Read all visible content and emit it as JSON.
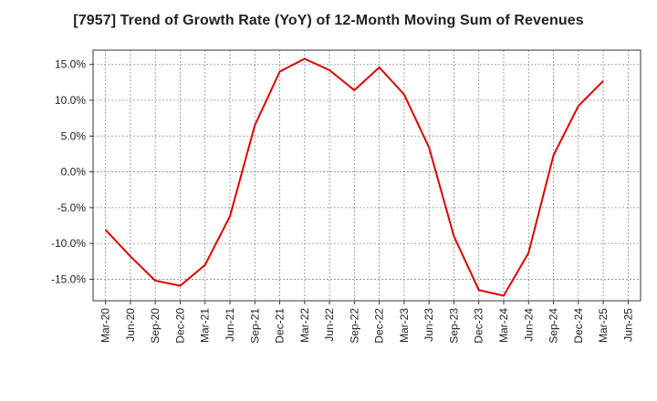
{
  "chart_data": {
    "type": "line",
    "title": "[7957]  Trend of Growth Rate (YoY) of 12-Month Moving Sum of Revenues",
    "xlabel": "",
    "ylabel": "",
    "x": [
      "Mar-20",
      "Jun-20",
      "Sep-20",
      "Dec-20",
      "Mar-21",
      "Jun-21",
      "Sep-21",
      "Dec-21",
      "Mar-22",
      "Jun-22",
      "Sep-22",
      "Dec-22",
      "Mar-23",
      "Jun-23",
      "Sep-23",
      "Dec-23",
      "Mar-24",
      "Jun-24",
      "Sep-24",
      "Dec-24",
      "Mar-25",
      "Jun-25"
    ],
    "series": [
      {
        "name": "",
        "color": "#e00000",
        "values": [
          -8.1,
          -11.8,
          -15.2,
          -15.9,
          -13.0,
          -6.2,
          6.5,
          14.0,
          15.8,
          14.2,
          11.4,
          14.6,
          10.8,
          3.4,
          -9.0,
          -16.5,
          -17.3,
          -11.3,
          2.3,
          9.2,
          12.7,
          null
        ]
      }
    ],
    "ylim": [
      -18,
      17
    ],
    "yticks": [
      -15,
      -10,
      -5,
      0,
      5,
      10,
      15
    ],
    "ytick_labels": [
      "-15.0%",
      "-10.0%",
      "-5.0%",
      "0.0%",
      "5.0%",
      "10.0%",
      "15.0%"
    ],
    "grid": true,
    "legend": "none"
  }
}
